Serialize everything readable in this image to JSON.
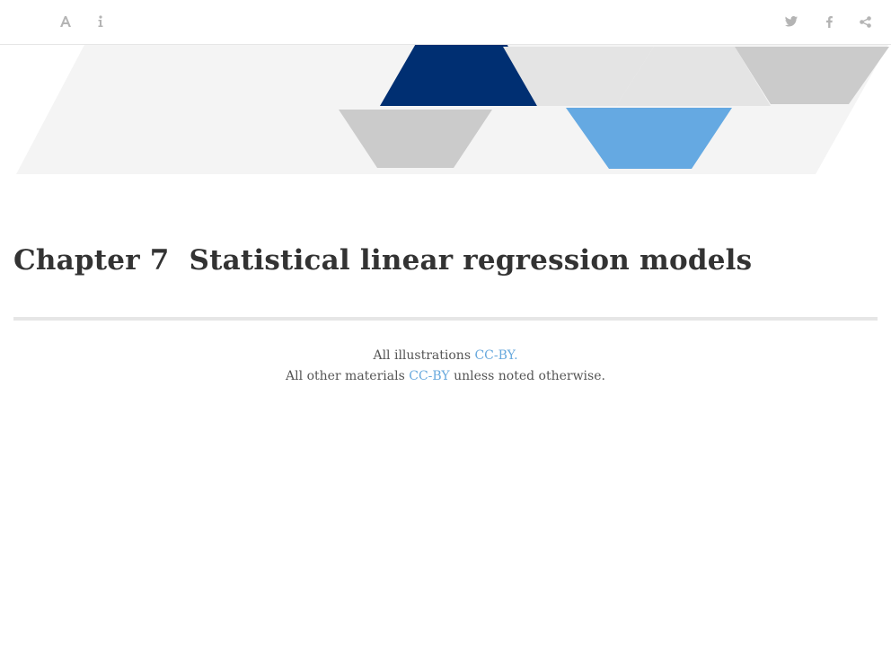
{
  "toolbar": {
    "left_icons": [
      "font-settings-icon",
      "info-icon"
    ],
    "right_icons": [
      "twitter-icon",
      "facebook-icon",
      "share-icon"
    ],
    "icon_color": "#b4b4b4"
  },
  "banner": {
    "colors": {
      "background_band": "#f4f4f4",
      "dark_blue": "#002f72",
      "light_blue": "#65a9e2",
      "gray_light": "#e4e4e4",
      "gray_mid": "#cbcbcb"
    }
  },
  "chapter": {
    "number": "Chapter 7",
    "title": "Statistical linear regression models"
  },
  "footer": {
    "line1_prefix": "All illustrations ",
    "line1_link": "CC-BY.",
    "line2_prefix": "All other materials ",
    "line2_link": "CC-BY",
    "line2_suffix": " unless noted otherwise.",
    "link_color": "#68a9dd"
  }
}
